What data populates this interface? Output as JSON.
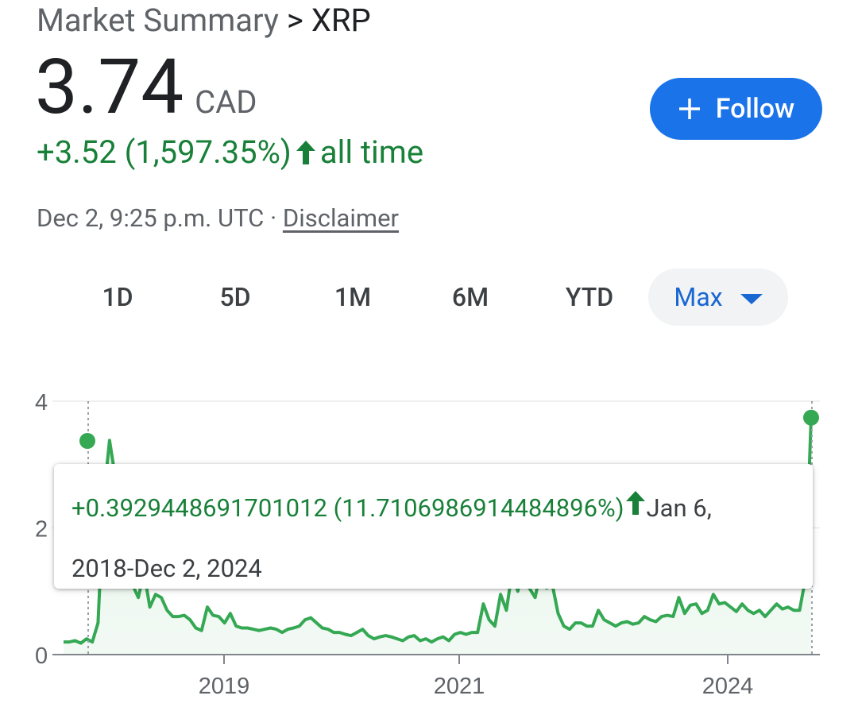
{
  "breadcrumb": {
    "root": "Market Summary",
    "separator": ">",
    "current": "XRP"
  },
  "quote": {
    "price": "3.74",
    "currency": "CAD",
    "change": "+3.52 (1,597.35%)",
    "change_period": "all time",
    "timestamp": "Dec 2, 9:25 p.m. UTC",
    "separator": "·",
    "disclaimer": "Disclaimer"
  },
  "follow_button": {
    "label": "Follow",
    "icon": "plus-icon"
  },
  "range_tabs": [
    {
      "label": "1D"
    },
    {
      "label": "5D"
    },
    {
      "label": "1M"
    },
    {
      "label": "6M"
    },
    {
      "label": "YTD"
    },
    {
      "label": "Max",
      "selected": true,
      "icon": "dropdown-arrow-icon"
    }
  ],
  "tooltip": {
    "change": "+0.3929448691701012 (11.7106986914484896%)",
    "range_start": "Jan 6,",
    "range_end": "2018-Dec 2, 2024"
  },
  "colors": {
    "positive": "#188038",
    "line": "#34a853",
    "accent": "#1a73e8",
    "selected_tab_text": "#1967d2",
    "selected_tab_bg": "#f1f3f4"
  },
  "chart_data": {
    "type": "area",
    "y_ticks": [
      "0",
      "2",
      "4"
    ],
    "x_ticks": [
      "2019",
      "2021",
      "2024"
    ],
    "ylim": [
      0,
      4
    ],
    "grid": true,
    "series": [
      {
        "values": [
          0.2,
          0.2,
          0.22,
          0.18,
          0.25,
          0.2,
          0.5,
          2.5,
          3.38,
          2.8,
          2.2,
          1.4,
          1.1,
          0.9,
          1.3,
          0.75,
          0.95,
          0.9,
          0.7,
          0.6,
          0.6,
          0.62,
          0.55,
          0.42,
          0.38,
          0.75,
          0.62,
          0.6,
          0.5,
          0.65,
          0.45,
          0.42,
          0.42,
          0.4,
          0.38,
          0.4,
          0.42,
          0.4,
          0.35,
          0.4,
          0.42,
          0.45,
          0.55,
          0.58,
          0.5,
          0.42,
          0.4,
          0.35,
          0.35,
          0.32,
          0.3,
          0.35,
          0.4,
          0.3,
          0.25,
          0.28,
          0.3,
          0.28,
          0.25,
          0.22,
          0.28,
          0.3,
          0.22,
          0.25,
          0.2,
          0.25,
          0.28,
          0.22,
          0.32,
          0.35,
          0.32,
          0.35,
          0.35,
          0.8,
          0.55,
          0.45,
          0.95,
          0.7,
          1.3,
          1.0,
          1.4,
          1.05,
          0.9,
          1.35,
          1.05,
          1.1,
          0.65,
          0.45,
          0.4,
          0.5,
          0.5,
          0.45,
          0.45,
          0.7,
          0.55,
          0.5,
          0.45,
          0.5,
          0.52,
          0.48,
          0.5,
          0.6,
          0.55,
          0.52,
          0.6,
          0.62,
          0.6,
          0.9,
          0.65,
          0.78,
          0.8,
          0.65,
          0.7,
          0.95,
          0.8,
          0.82,
          0.75,
          0.68,
          0.8,
          0.7,
          0.65,
          0.7,
          0.6,
          0.7,
          0.8,
          0.72,
          0.75,
          0.7,
          0.7,
          1.2,
          3.74
        ]
      }
    ]
  }
}
